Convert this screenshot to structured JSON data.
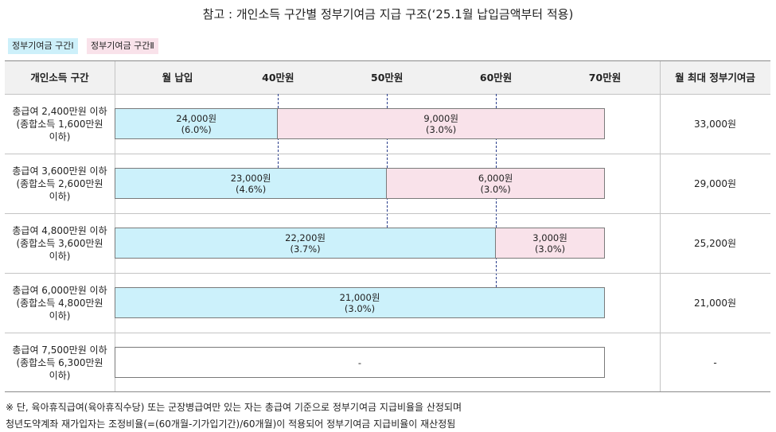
{
  "title": "참고 : 개인소득 구간별 정부기여금 지급 구조(‘25.1월 납입금액부터 적용)",
  "legend": {
    "group1": "정부기여금 구간Ⅰ",
    "group2": "정부기여금 구간Ⅱ"
  },
  "header": {
    "income": "개인소득 구간",
    "payment": "월 납입",
    "max": "월 최대 정부기여금"
  },
  "colors": {
    "group1": "#ccf1fb",
    "group2": "#f9e2ea",
    "divider": "#2a3e8c"
  },
  "chart_data": {
    "type": "bar",
    "orientation": "horizontal-stacked",
    "x_ticks": [
      "40만원",
      "50만원",
      "60만원",
      "70만원"
    ],
    "x_tick_values": [
      40,
      50,
      60,
      70
    ],
    "xlim": [
      25,
      70
    ],
    "rows": [
      {
        "label": [
          "총급여 2,400만원 이하",
          "(종합소득 1,600만원",
          "이하)"
        ],
        "segments": [
          {
            "group": 1,
            "end": 40,
            "amount": "24,000원",
            "rate": "(6.0%)"
          },
          {
            "group": 2,
            "end": 70,
            "amount": "9,000원",
            "rate": "(3.0%)"
          }
        ],
        "max": "33,000원"
      },
      {
        "label": [
          "총급여 3,600만원 이하",
          "(종합소득 2,600만원",
          "이하)"
        ],
        "segments": [
          {
            "group": 1,
            "end": 50,
            "amount": "23,000원",
            "rate": "(4.6%)"
          },
          {
            "group": 2,
            "end": 70,
            "amount": "6,000원",
            "rate": "(3.0%)"
          }
        ],
        "max": "29,000원"
      },
      {
        "label": [
          "총급여 4,800만원 이하",
          "(종합소득 3,600만원",
          "이하)"
        ],
        "segments": [
          {
            "group": 1,
            "end": 60,
            "amount": "22,200원",
            "rate": "(3.7%)"
          },
          {
            "group": 2,
            "end": 70,
            "amount": "3,000원",
            "rate": "(3.0%)"
          }
        ],
        "max": "25,200원"
      },
      {
        "label": [
          "총급여 6,000만원 이하",
          "(종합소득 4,800만원",
          "이하)"
        ],
        "segments": [
          {
            "group": 1,
            "end": 70,
            "amount": "21,000원",
            "rate": "(3.0%)"
          }
        ],
        "max": "21,000원"
      },
      {
        "label": [
          "총급여 7,500만원 이하",
          "(종합소득 6,300만원",
          "이하)"
        ],
        "segments": [
          {
            "group": 0,
            "end": 70,
            "amount": "-",
            "rate": ""
          }
        ],
        "max": "-"
      }
    ]
  },
  "notes": [
    "※ 단, 육아휴직급여(육아휴직수당) 또는 군장병급여만 있는 자는 총급여 기준으로 정부기여금 지급비율을 산정되며",
    "청년도약계좌 재가입자는 조정비율(=(60개월-기가입기간)/60개월)이 적용되어 정부기여금 지급비율이 재산정됨"
  ]
}
